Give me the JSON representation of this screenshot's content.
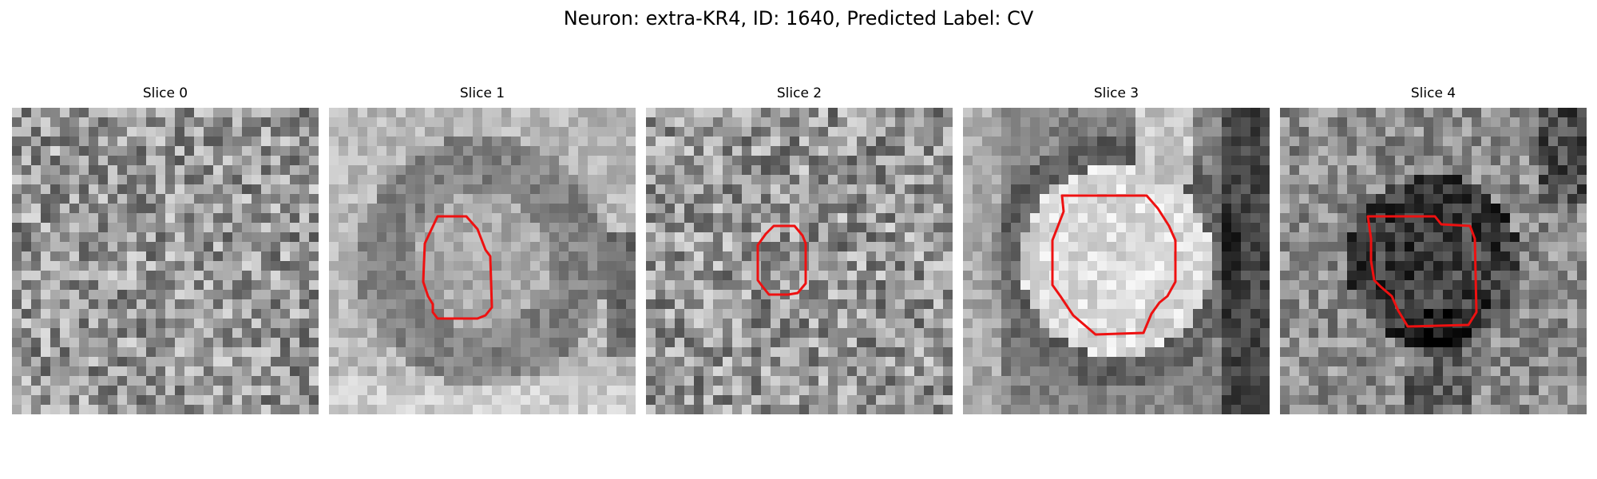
{
  "figure": {
    "title": "Neuron: extra-KR4, ID: 1640, Predicted Label: CV"
  },
  "panels": [
    {
      "title": "Slice 0",
      "contour": false,
      "brightness": "mid",
      "pattern": "noise"
    },
    {
      "title": "Slice 1",
      "contour": true,
      "brightness": "light",
      "pattern": "ring"
    },
    {
      "title": "Slice 2",
      "contour": true,
      "brightness": "mid",
      "pattern": "noise"
    },
    {
      "title": "Slice 3",
      "contour": true,
      "brightness": "mid",
      "pattern": "bright-blob"
    },
    {
      "title": "Slice 4",
      "contour": true,
      "brightness": "mid",
      "pattern": "dark-blob"
    }
  ],
  "colors": {
    "contour": "#ee1111",
    "background": "#ffffff"
  }
}
